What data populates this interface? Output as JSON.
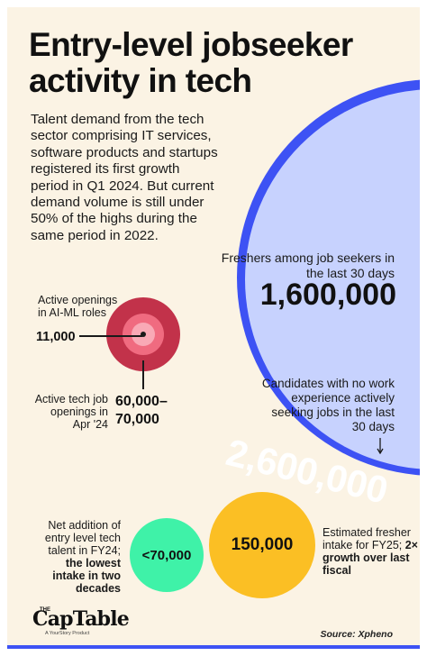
{
  "title": "Entry-level jobseeker activity in tech",
  "intro": "Talent demand from the tech sector comprising IT services, software products and startups registered its first growth period in Q1 2024. But current demand volume is still under 50% of the highs during the same period in 2022.",
  "freshers": {
    "label": "Freshers among job seekers in the last 30 days",
    "value": "1,600,000"
  },
  "candidates": {
    "label": "Candidates with no work experience actively seeking jobs in the last 30 days",
    "value": "2,600,000"
  },
  "ai_ml": {
    "label": "Active openings in AI-ML roles",
    "value": "11,000"
  },
  "tech_jobs": {
    "label": "Active tech job openings in Apr '24",
    "value_line1": "60,000–",
    "value_line2": "70,000"
  },
  "net_addition": {
    "label": "Net addition of entry level tech talent in FY24;",
    "emphasis": "the lowest intake in two decades",
    "value": "<70,000"
  },
  "fresher_intake": {
    "label": "Estimated fresher intake for FY25;",
    "emphasis": "2× growth over last fiscal",
    "value": "150,000"
  },
  "logo": {
    "the": "THE",
    "name": "CapTable",
    "sub": "A YourStory Product"
  },
  "source": "Source: Xpheno",
  "colors": {
    "background": "#fbf3e4",
    "blue": "#3d52f4",
    "light_blue": "#c7d2fe",
    "red": "#c2324a",
    "pink": "#f06b80",
    "green": "#3ff2a8",
    "yellow": "#fbbf24"
  }
}
